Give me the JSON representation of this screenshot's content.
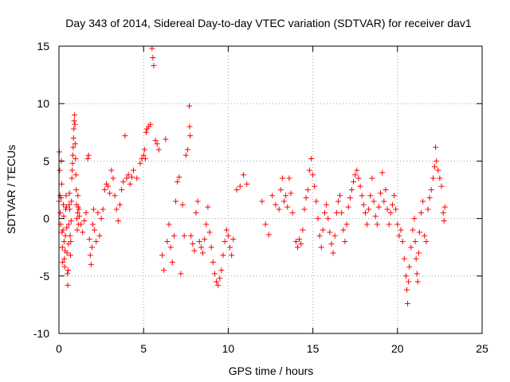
{
  "chart_data": {
    "type": "scatter",
    "title": "Day 343 of 2014, Sidereal Day-to-day VTEC variation (SDTVAR) for receiver dav1",
    "xlabel": "GPS time / hours",
    "ylabel": "SDTVAR / TECUs",
    "xlim": [
      0,
      25
    ],
    "ylim": [
      -10,
      15
    ],
    "xticks": [
      0,
      5,
      10,
      15,
      20,
      25
    ],
    "yticks": [
      -10,
      -5,
      0,
      5,
      10,
      15
    ],
    "xtick_labels": [
      "0",
      "5",
      "10",
      "15",
      "20",
      "25"
    ],
    "ytick_labels": [
      "-10",
      "-5",
      "0",
      "5",
      "10",
      "15"
    ],
    "grid": true,
    "marker": "+",
    "color": "#ff0000",
    "series": [
      {
        "name": "dav1",
        "points": [
          [
            0.0,
            1.5
          ],
          [
            0.02,
            5.8
          ],
          [
            0.04,
            4.2
          ],
          [
            0.06,
            2.0
          ],
          [
            0.08,
            0.5
          ],
          [
            0.1,
            -0.5
          ],
          [
            0.12,
            1.8
          ],
          [
            0.14,
            5.0
          ],
          [
            0.16,
            3.0
          ],
          [
            0.18,
            -1.2
          ],
          [
            0.2,
            -2.5
          ],
          [
            0.22,
            -3.8
          ],
          [
            0.24,
            -1.0
          ],
          [
            0.26,
            1.2
          ],
          [
            0.28,
            0.2
          ],
          [
            0.3,
            -2.0
          ],
          [
            0.32,
            -3.5
          ],
          [
            0.34,
            -4.2
          ],
          [
            0.36,
            -2.8
          ],
          [
            0.38,
            -1.5
          ],
          [
            0.4,
            0.8
          ],
          [
            0.42,
            2.0
          ],
          [
            0.44,
            1.0
          ],
          [
            0.46,
            -0.8
          ],
          [
            0.48,
            -3.0
          ],
          [
            0.5,
            -4.8
          ],
          [
            0.52,
            -5.8
          ],
          [
            0.54,
            -4.5
          ],
          [
            0.56,
            -2.2
          ],
          [
            0.58,
            -0.5
          ],
          [
            0.6,
            1.2
          ],
          [
            0.62,
            2.2
          ],
          [
            0.64,
            0.8
          ],
          [
            0.66,
            -1.5
          ],
          [
            0.68,
            -3.2
          ],
          [
            0.7,
            -2.0
          ],
          [
            0.72,
            -0.2
          ],
          [
            0.74,
            1.5
          ],
          [
            0.76,
            3.5
          ],
          [
            0.78,
            4.2
          ],
          [
            0.8,
            4.8
          ],
          [
            0.82,
            5.5
          ],
          [
            0.84,
            6.2
          ],
          [
            0.86,
            7.0
          ],
          [
            0.88,
            7.8
          ],
          [
            0.9,
            8.5
          ],
          [
            0.92,
            9.0
          ],
          [
            0.94,
            8.2
          ],
          [
            0.96,
            6.5
          ],
          [
            0.98,
            5.2
          ],
          [
            1.0,
            3.8
          ],
          [
            1.02,
            2.5
          ],
          [
            1.04,
            1.2
          ],
          [
            1.06,
            0.0
          ],
          [
            1.08,
            -1.0
          ],
          [
            1.1,
            0.5
          ],
          [
            1.12,
            2.0
          ],
          [
            1.14,
            1.0
          ],
          [
            1.16,
            -0.5
          ],
          [
            1.18,
            0.8
          ],
          [
            1.2,
            0.2
          ],
          [
            1.3,
            -0.5
          ],
          [
            1.4,
            -1.2
          ],
          [
            1.5,
            -0.2
          ],
          [
            1.6,
            0.5
          ],
          [
            1.7,
            5.2
          ],
          [
            1.75,
            5.5
          ],
          [
            1.8,
            -1.8
          ],
          [
            1.85,
            -3.2
          ],
          [
            1.9,
            -4.0
          ],
          [
            1.95,
            -2.5
          ],
          [
            2.0,
            -0.5
          ],
          [
            2.05,
            0.8
          ],
          [
            2.1,
            -1.0
          ],
          [
            2.2,
            -2.0
          ],
          [
            2.3,
            0.5
          ],
          [
            2.4,
            -1.5
          ],
          [
            2.5,
            0.0
          ],
          [
            2.6,
            0.8
          ],
          [
            2.7,
            2.5
          ],
          [
            2.8,
            3.0
          ],
          [
            2.9,
            2.8
          ],
          [
            3.0,
            2.2
          ],
          [
            3.1,
            4.2
          ],
          [
            3.2,
            3.5
          ],
          [
            3.3,
            2.0
          ],
          [
            3.4,
            0.8
          ],
          [
            3.5,
            -0.2
          ],
          [
            3.6,
            1.2
          ],
          [
            3.7,
            2.5
          ],
          [
            3.8,
            3.2
          ],
          [
            3.9,
            7.2
          ],
          [
            4.0,
            3.5
          ],
          [
            4.1,
            3.8
          ],
          [
            4.2,
            3.0
          ],
          [
            4.3,
            3.6
          ],
          [
            4.4,
            4.2
          ],
          [
            4.6,
            3.5
          ],
          [
            4.8,
            4.8
          ],
          [
            4.9,
            5.2
          ],
          [
            5.0,
            5.5
          ],
          [
            5.05,
            6.0
          ],
          [
            5.1,
            5.2
          ],
          [
            5.15,
            7.5
          ],
          [
            5.2,
            7.8
          ],
          [
            5.3,
            8.0
          ],
          [
            5.4,
            8.2
          ],
          [
            5.5,
            14.8
          ],
          [
            5.55,
            14.0
          ],
          [
            5.6,
            13.3
          ],
          [
            5.7,
            6.8
          ],
          [
            5.8,
            6.5
          ],
          [
            5.9,
            6.0
          ],
          [
            6.1,
            -3.2
          ],
          [
            6.2,
            -4.5
          ],
          [
            6.3,
            6.9
          ],
          [
            6.4,
            -2.0
          ],
          [
            6.5,
            -0.5
          ],
          [
            6.6,
            -2.5
          ],
          [
            6.7,
            -3.8
          ],
          [
            6.8,
            -1.5
          ],
          [
            6.9,
            1.5
          ],
          [
            7.0,
            3.2
          ],
          [
            7.1,
            3.6
          ],
          [
            7.2,
            -4.8
          ],
          [
            7.3,
            1.2
          ],
          [
            7.4,
            -1.5
          ],
          [
            7.5,
            5.5
          ],
          [
            7.6,
            6.0
          ],
          [
            7.7,
            9.8
          ],
          [
            7.72,
            8.0
          ],
          [
            7.75,
            7.2
          ],
          [
            7.8,
            -1.5
          ],
          [
            7.9,
            -2.2
          ],
          [
            8.0,
            -2.8
          ],
          [
            8.1,
            0.5
          ],
          [
            8.2,
            1.5
          ],
          [
            8.3,
            -2.0
          ],
          [
            8.4,
            -2.5
          ],
          [
            8.5,
            -3.0
          ],
          [
            8.6,
            -1.8
          ],
          [
            8.7,
            -0.5
          ],
          [
            8.8,
            1.0
          ],
          [
            8.9,
            -1.2
          ],
          [
            9.0,
            -2.5
          ],
          [
            9.1,
            -3.8
          ],
          [
            9.2,
            -4.8
          ],
          [
            9.3,
            -5.5
          ],
          [
            9.4,
            -5.8
          ],
          [
            9.5,
            -5.2
          ],
          [
            9.6,
            -4.5
          ],
          [
            9.7,
            -3.2
          ],
          [
            9.8,
            -2.0
          ],
          [
            9.9,
            -1.0
          ],
          [
            10.0,
            -1.5
          ],
          [
            10.1,
            -2.5
          ],
          [
            10.2,
            -3.2
          ],
          [
            10.3,
            -1.8
          ],
          [
            10.5,
            2.5
          ],
          [
            10.7,
            2.8
          ],
          [
            10.9,
            3.8
          ],
          [
            11.1,
            3.0
          ],
          [
            12.0,
            1.5
          ],
          [
            12.2,
            -0.5
          ],
          [
            12.4,
            -1.4
          ],
          [
            12.6,
            2.0
          ],
          [
            12.8,
            1.2
          ],
          [
            13.0,
            0.8
          ],
          [
            13.1,
            2.5
          ],
          [
            13.2,
            3.5
          ],
          [
            13.3,
            1.5
          ],
          [
            13.4,
            2.0
          ],
          [
            13.5,
            1.0
          ],
          [
            13.6,
            3.5
          ],
          [
            13.7,
            2.2
          ],
          [
            13.8,
            0.5
          ],
          [
            14.0,
            -2.0
          ],
          [
            14.1,
            -2.5
          ],
          [
            14.2,
            -1.8
          ],
          [
            14.3,
            -2.2
          ],
          [
            14.4,
            -1.0
          ],
          [
            14.5,
            0.8
          ],
          [
            14.6,
            1.8
          ],
          [
            14.7,
            2.5
          ],
          [
            14.8,
            4.2
          ],
          [
            14.9,
            5.2
          ],
          [
            15.0,
            3.8
          ],
          [
            15.1,
            2.8
          ],
          [
            15.2,
            1.5
          ],
          [
            15.3,
            0.0
          ],
          [
            15.4,
            -1.5
          ],
          [
            15.5,
            -2.5
          ],
          [
            15.6,
            -1.0
          ],
          [
            15.7,
            0.5
          ],
          [
            15.8,
            1.2
          ],
          [
            15.9,
            0.0
          ],
          [
            16.0,
            -1.2
          ],
          [
            16.1,
            -2.2
          ],
          [
            16.2,
            -3.0
          ],
          [
            16.3,
            -1.5
          ],
          [
            16.4,
            0.5
          ],
          [
            16.5,
            1.5
          ],
          [
            16.6,
            2.0
          ],
          [
            16.7,
            0.5
          ],
          [
            16.8,
            -1.0
          ],
          [
            16.9,
            -2.0
          ],
          [
            17.0,
            -0.5
          ],
          [
            17.1,
            1.0
          ],
          [
            17.2,
            1.8
          ],
          [
            17.3,
            2.5
          ],
          [
            17.4,
            3.2
          ],
          [
            17.5,
            3.8
          ],
          [
            17.6,
            4.2
          ],
          [
            17.7,
            3.5
          ],
          [
            17.8,
            2.8
          ],
          [
            17.9,
            2.0
          ],
          [
            18.0,
            1.2
          ],
          [
            18.1,
            0.5
          ],
          [
            18.2,
            -0.5
          ],
          [
            18.3,
            0.8
          ],
          [
            18.4,
            2.0
          ],
          [
            18.5,
            3.5
          ],
          [
            18.6,
            1.5
          ],
          [
            18.7,
            0.2
          ],
          [
            18.8,
            -0.5
          ],
          [
            18.9,
            1.0
          ],
          [
            19.0,
            2.2
          ],
          [
            19.1,
            4.0
          ],
          [
            19.2,
            1.5
          ],
          [
            19.3,
            2.5
          ],
          [
            19.4,
            0.8
          ],
          [
            19.5,
            -0.5
          ],
          [
            19.6,
            0.5
          ],
          [
            19.7,
            1.2
          ],
          [
            19.8,
            2.0
          ],
          [
            19.9,
            0.8
          ],
          [
            20.0,
            -0.5
          ],
          [
            20.1,
            -1.5
          ],
          [
            20.2,
            -1.0
          ],
          [
            20.3,
            -2.0
          ],
          [
            20.4,
            -3.5
          ],
          [
            20.5,
            -5.0
          ],
          [
            20.55,
            -6.2
          ],
          [
            20.6,
            -7.4
          ],
          [
            20.65,
            -5.5
          ],
          [
            20.7,
            -4.2
          ],
          [
            20.8,
            -2.5
          ],
          [
            20.9,
            -1.0
          ],
          [
            21.0,
            0.0
          ],
          [
            21.05,
            -2.0
          ],
          [
            21.1,
            -3.5
          ],
          [
            21.15,
            -4.8
          ],
          [
            21.2,
            -5.5
          ],
          [
            21.25,
            -3.0
          ],
          [
            21.3,
            -1.2
          ],
          [
            21.4,
            0.5
          ],
          [
            21.5,
            1.5
          ],
          [
            21.6,
            -1.5
          ],
          [
            21.7,
            -2.0
          ],
          [
            21.8,
            0.8
          ],
          [
            21.9,
            1.8
          ],
          [
            22.0,
            2.5
          ],
          [
            22.1,
            3.5
          ],
          [
            22.2,
            4.5
          ],
          [
            22.25,
            6.2
          ],
          [
            22.3,
            5.0
          ],
          [
            22.4,
            4.2
          ],
          [
            22.5,
            3.5
          ],
          [
            22.6,
            2.8
          ],
          [
            22.7,
            0.5
          ],
          [
            22.75,
            -0.2
          ],
          [
            22.8,
            1.0
          ]
        ]
      }
    ]
  }
}
